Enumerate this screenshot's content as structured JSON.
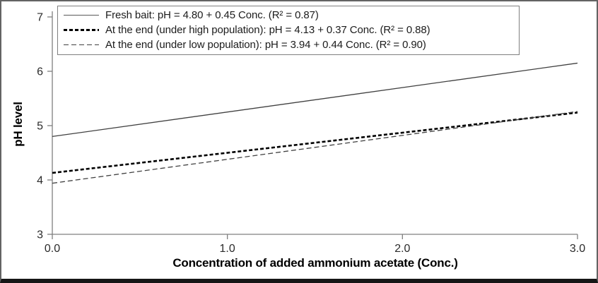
{
  "figure": {
    "frame_color": "#636363",
    "bottom_bar_color": "#161616",
    "background": "#ffffff"
  },
  "chart_data": {
    "type": "line",
    "title": "",
    "xlabel": "Concentration of added ammonium acetate (Conc.)",
    "ylabel": "pH level",
    "xlim": [
      0.0,
      3.0
    ],
    "ylim": [
      3,
      7
    ],
    "x_ticks": [
      "0.0",
      "1.0",
      "2.0",
      "3.0"
    ],
    "y_ticks": [
      "3",
      "4",
      "5",
      "6",
      "7"
    ],
    "grid": false,
    "legend_position": "top-left",
    "axis_color": "#7f7f7f",
    "series": [
      {
        "name": "Fresh bait",
        "label": "Fresh bait: pH = 4.80 + 0.45 Conc. (R² = 0.87)",
        "equation": {
          "intercept": 4.8,
          "slope": 0.45,
          "r2": 0.87
        },
        "style": "solid",
        "color": "#404040",
        "x": [
          0.0,
          3.0
        ],
        "y": [
          4.8,
          6.15
        ]
      },
      {
        "name": "At the end (under high population)",
        "label": "At the end (under high population): pH = 4.13 + 0.37 Conc. (R² = 0.88)",
        "equation": {
          "intercept": 4.13,
          "slope": 0.37,
          "r2": 0.88
        },
        "style": "dashed-bold",
        "color": "#000000",
        "x": [
          0.0,
          3.0
        ],
        "y": [
          4.13,
          5.24
        ]
      },
      {
        "name": "At the end (under low population)",
        "label": "At the end (under low population): pH = 3.94 + 0.44 Conc. (R² = 0.90)",
        "equation": {
          "intercept": 3.94,
          "slope": 0.44,
          "r2": 0.9
        },
        "style": "dashed-thin",
        "color": "#404040",
        "x": [
          0.0,
          3.0
        ],
        "y": [
          3.94,
          5.26
        ]
      }
    ]
  }
}
